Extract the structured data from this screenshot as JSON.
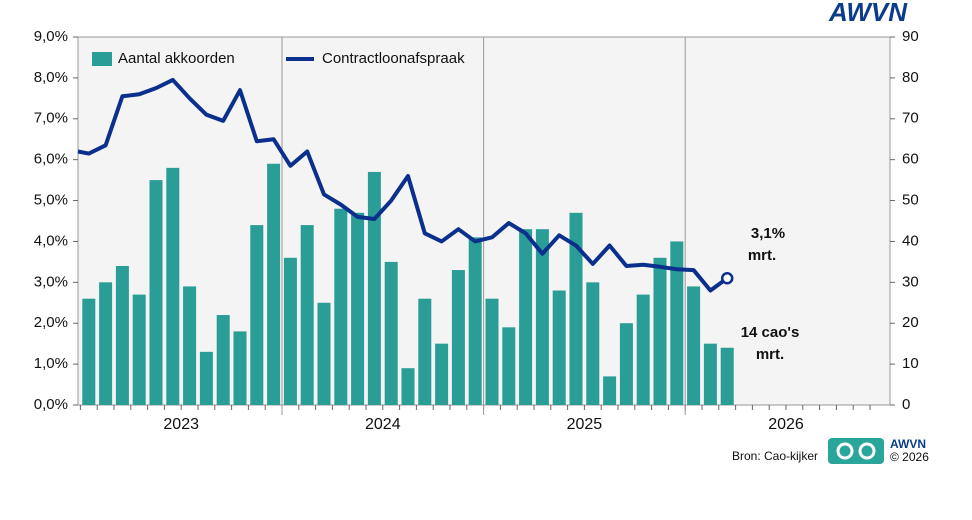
{
  "chart_data": {
    "type": "bar-line",
    "categories": [
      null,
      null,
      null,
      null,
      null,
      null,
      null,
      null,
      null,
      null,
      null,
      null,
      null,
      null,
      null,
      null,
      null,
      null,
      null,
      null,
      null,
      null,
      null,
      null,
      null,
      null,
      null,
      null,
      null,
      null,
      null,
      null,
      null,
      null,
      null,
      null,
      null,
      null,
      null,
      null
    ],
    "year_labels": [
      "2023",
      "2024",
      "2025",
      "2026"
    ],
    "series": [
      {
        "name": "Aantal akkoorden",
        "color": "#2a9d96",
        "axis": "y2",
        "values": [
          null,
          26,
          30,
          34,
          27,
          55,
          58,
          29,
          13,
          22,
          18,
          44,
          59,
          36,
          44,
          25,
          48,
          47,
          57,
          35,
          9,
          26,
          15,
          33,
          41,
          26,
          19,
          43,
          43,
          28,
          47,
          30,
          7,
          20,
          27,
          36,
          40,
          29,
          15,
          14
        ]
      },
      {
        "name": "Contractloonafspraak",
        "color": "#0a2f8c",
        "axis": "y",
        "values": [
          6.2,
          6.15,
          6.35,
          7.55,
          7.6,
          7.75,
          7.95,
          7.5,
          7.1,
          6.95,
          7.7,
          6.45,
          6.5,
          5.85,
          6.2,
          5.15,
          4.9,
          4.6,
          4.55,
          5.0,
          5.6,
          4.2,
          4.0,
          4.3,
          4.0,
          4.1,
          4.45,
          4.2,
          3.7,
          4.15,
          3.9,
          3.45,
          3.9,
          3.4,
          3.43,
          3.38,
          3.32,
          3.3,
          2.8,
          3.1
        ]
      }
    ],
    "ylim": [
      0,
      9
    ],
    "yticks": [
      {
        "value": 0,
        "label": "0,0%"
      },
      {
        "value": 1,
        "label": "1,0%"
      },
      {
        "value": 2,
        "label": "2,0%"
      },
      {
        "value": 3,
        "label": "3,0%"
      },
      {
        "value": 4,
        "label": "4,0%"
      },
      {
        "value": 5,
        "label": "5,0%"
      },
      {
        "value": 6,
        "label": "6,0%"
      },
      {
        "value": 7,
        "label": "7,0%"
      },
      {
        "value": 8,
        "label": "8,0%"
      },
      {
        "value": 9,
        "label": "9,0%"
      }
    ],
    "y2lim": [
      0,
      90
    ],
    "y2ticks": [
      0,
      10,
      20,
      30,
      40,
      50,
      60,
      70,
      80,
      90
    ],
    "legend": "top-left",
    "annotations": [
      "3,1%",
      "mrt.",
      "14 cao's",
      "mrt."
    ],
    "source": "Bron: Cao-kijker",
    "logo": "AWVN",
    "logo_small": "AWVN",
    "copyright": "© 2026"
  }
}
